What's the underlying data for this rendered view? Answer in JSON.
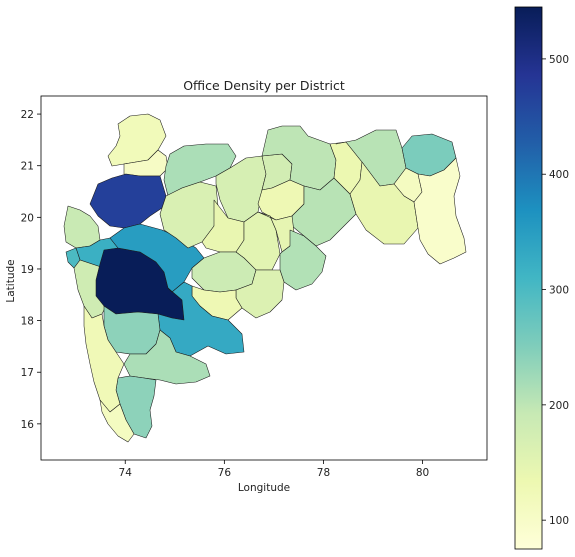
{
  "chart_data": {
    "type": "choropleth",
    "title": "Office Density per District",
    "xlabel": "Longitude",
    "ylabel": "Latitude",
    "xlim": [
      72.3,
      81.3
    ],
    "ylim": [
      15.3,
      22.35
    ],
    "x_ticks": [
      74,
      76,
      78,
      80
    ],
    "y_ticks": [
      16,
      17,
      18,
      19,
      20,
      21,
      22
    ],
    "colormap": "YlGnBu",
    "color_range": [
      75,
      545
    ],
    "colorbar_ticks": [
      100,
      200,
      300,
      400,
      500
    ],
    "grid": false,
    "districts": [
      {
        "id": "nandurbar",
        "value": 120
      },
      {
        "id": "dhule",
        "value": 105
      },
      {
        "id": "jalgaon",
        "value": 215
      },
      {
        "id": "buldhana",
        "value": 170
      },
      {
        "id": "akola",
        "value": 175
      },
      {
        "id": "washim",
        "value": 130
      },
      {
        "id": "amravati",
        "value": 200
      },
      {
        "id": "yavatmal",
        "value": 205
      },
      {
        "id": "wardha",
        "value": 135
      },
      {
        "id": "nagpur",
        "value": 205
      },
      {
        "id": "bhandara",
        "value": 110
      },
      {
        "id": "gondia",
        "value": 255
      },
      {
        "id": "chandrapur",
        "value": 140
      },
      {
        "id": "gadchiroli",
        "value": 95
      },
      {
        "id": "nashik",
        "value": 470
      },
      {
        "id": "palghar",
        "value": 190
      },
      {
        "id": "thane",
        "value": 320
      },
      {
        "id": "mumbai",
        "value": 300
      },
      {
        "id": "raigad",
        "value": 180
      },
      {
        "id": "pune",
        "value": 545
      },
      {
        "id": "ahmednagar",
        "value": 350
      },
      {
        "id": "aurangabad",
        "value": 165
      },
      {
        "id": "jalna",
        "value": 140
      },
      {
        "id": "parbhani",
        "value": 150
      },
      {
        "id": "hingoli",
        "value": 145
      },
      {
        "id": "nanded",
        "value": 210
      },
      {
        "id": "beed",
        "value": 185
      },
      {
        "id": "latur",
        "value": 160
      },
      {
        "id": "osmanabad",
        "value": 130
      },
      {
        "id": "solapur",
        "value": 330
      },
      {
        "id": "satara",
        "value": 240
      },
      {
        "id": "sangli",
        "value": 215
      },
      {
        "id": "kolhapur",
        "value": 240
      },
      {
        "id": "ratnagiri",
        "value": 125
      },
      {
        "id": "sindhudurg",
        "value": 110
      }
    ]
  }
}
